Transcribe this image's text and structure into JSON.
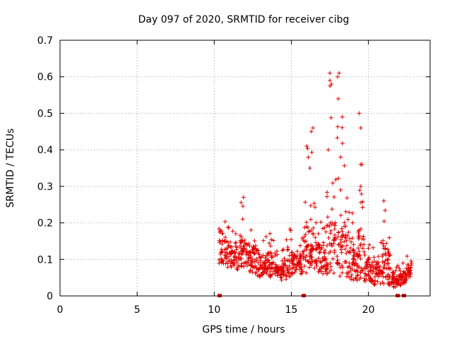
{
  "chart_data": {
    "type": "scatter",
    "title": "Day 097 of 2020, SRMTID for receiver cibg",
    "xlabel": "GPS time / hours",
    "ylabel": "SRMTID / TECUs",
    "xlim": [
      0,
      24
    ],
    "ylim": [
      0,
      0.7
    ],
    "x_ticks": [
      0,
      5,
      10,
      15,
      20
    ],
    "x_tick_labels": [
      "0",
      "5",
      "10",
      "15",
      "20"
    ],
    "y_ticks": [
      0,
      0.1,
      0.2,
      0.3,
      0.4,
      0.5,
      0.6,
      0.7
    ],
    "y_tick_labels": [
      "0",
      "0.1",
      "0.2",
      "0.3",
      "0.4",
      "0.5",
      "0.6",
      "0.7"
    ],
    "grid": true,
    "marker": "+",
    "color": "#e00000",
    "series": [
      {
        "name": "SRMTID",
        "envelope": [
          [
            10.3,
            0.09,
            0.2
          ],
          [
            10.6,
            0.08,
            0.22
          ],
          [
            10.9,
            0.07,
            0.21
          ],
          [
            11.2,
            0.08,
            0.2
          ],
          [
            11.5,
            0.07,
            0.2
          ],
          [
            11.8,
            0.08,
            0.27
          ],
          [
            12.1,
            0.08,
            0.2
          ],
          [
            12.4,
            0.06,
            0.19
          ],
          [
            12.7,
            0.05,
            0.22
          ],
          [
            13.0,
            0.05,
            0.15
          ],
          [
            13.3,
            0.06,
            0.16
          ],
          [
            13.6,
            0.05,
            0.18
          ],
          [
            13.9,
            0.06,
            0.15
          ],
          [
            14.2,
            0.04,
            0.12
          ],
          [
            14.5,
            0.04,
            0.13
          ],
          [
            14.8,
            0.05,
            0.22
          ],
          [
            15.1,
            0.05,
            0.17
          ],
          [
            15.4,
            0.06,
            0.15
          ],
          [
            15.7,
            0.06,
            0.17
          ],
          [
            16.0,
            0.06,
            0.41
          ],
          [
            16.3,
            0.07,
            0.46
          ],
          [
            16.6,
            0.07,
            0.21
          ],
          [
            16.9,
            0.06,
            0.2
          ],
          [
            17.2,
            0.06,
            0.25
          ],
          [
            17.5,
            0.06,
            0.61
          ],
          [
            17.8,
            0.06,
            0.3
          ],
          [
            18.1,
            0.05,
            0.61
          ],
          [
            18.4,
            0.05,
            0.5
          ],
          [
            18.7,
            0.05,
            0.25
          ],
          [
            19.0,
            0.04,
            0.23
          ],
          [
            19.3,
            0.04,
            0.2
          ],
          [
            19.5,
            0.04,
            0.5
          ],
          [
            19.8,
            0.04,
            0.15
          ],
          [
            20.1,
            0.04,
            0.15
          ],
          [
            20.4,
            0.03,
            0.14
          ],
          [
            20.7,
            0.03,
            0.14
          ],
          [
            21.0,
            0.03,
            0.26
          ],
          [
            21.3,
            0.03,
            0.21
          ],
          [
            21.6,
            0.02,
            0.1
          ],
          [
            21.9,
            0.02,
            0.09
          ],
          [
            22.2,
            0.03,
            0.09
          ],
          [
            22.5,
            0.04,
            0.11
          ],
          [
            22.8,
            0.05,
            0.1
          ]
        ],
        "highlights": [
          [
            16.3,
            0.45
          ],
          [
            16.4,
            0.46
          ],
          [
            17.5,
            0.59
          ],
          [
            17.5,
            0.61
          ],
          [
            17.6,
            0.58
          ],
          [
            18.0,
            0.6
          ],
          [
            18.1,
            0.61
          ],
          [
            18.3,
            0.49
          ],
          [
            18.2,
            0.38
          ],
          [
            19.4,
            0.5
          ],
          [
            19.5,
            0.46
          ],
          [
            19.5,
            0.36
          ],
          [
            19.5,
            0.3
          ],
          [
            21.0,
            0.26
          ],
          [
            11.9,
            0.27
          ],
          [
            16.0,
            0.41
          ],
          [
            16.1,
            0.38
          ],
          [
            16.2,
            0.35
          ],
          [
            17.4,
            0.4
          ],
          [
            18.2,
            0.29
          ]
        ]
      }
    ],
    "baseline_marks": [
      10.35,
      15.8,
      21.9,
      22.3
    ]
  }
}
